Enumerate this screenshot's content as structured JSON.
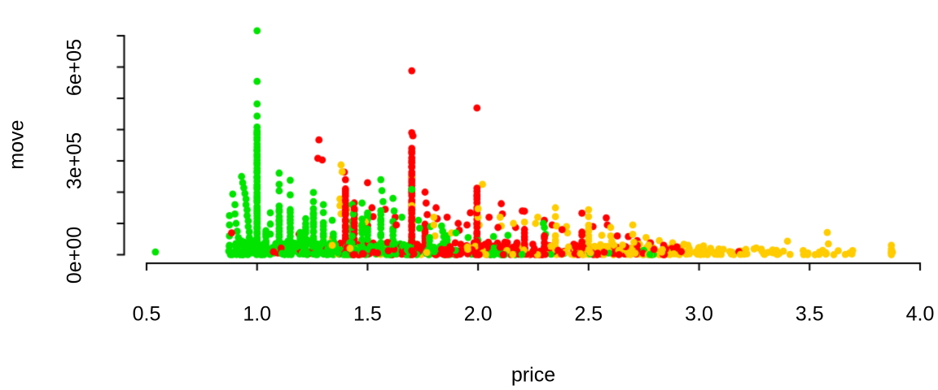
{
  "chart_data": {
    "type": "scatter",
    "title": "",
    "xlabel": "price",
    "ylabel": "move",
    "xlim": [
      0.5,
      4.0
    ],
    "ylim": [
      0,
      700000
    ],
    "grid": false,
    "legend": "none",
    "background": "#FFFFFF",
    "axis_color": "#000000",
    "x_ticks": [
      {
        "v": 0.5,
        "label": "0.5"
      },
      {
        "v": 1.0,
        "label": "1.0"
      },
      {
        "v": 1.5,
        "label": "1.5"
      },
      {
        "v": 2.0,
        "label": "2.0"
      },
      {
        "v": 2.5,
        "label": "2.5"
      },
      {
        "v": 3.0,
        "label": "3.0"
      },
      {
        "v": 3.5,
        "label": "3.5"
      },
      {
        "v": 4.0,
        "label": "4.0"
      }
    ],
    "y_ticks": [
      {
        "v": 0,
        "label": "0e+00"
      },
      {
        "v": 100000,
        "label": ""
      },
      {
        "v": 200000,
        "label": ""
      },
      {
        "v": 300000,
        "label": "3e+05"
      },
      {
        "v": 400000,
        "label": ""
      },
      {
        "v": 500000,
        "label": ""
      },
      {
        "v": 600000,
        "label": "6e+05"
      },
      {
        "v": 700000,
        "label": ""
      }
    ],
    "series": [
      {
        "name": "green",
        "color": "#00E400",
        "points": [
          [
            0.54,
            9000
          ],
          [
            0.875,
            30000
          ],
          [
            0.875,
            60000
          ],
          [
            0.875,
            95000
          ],
          [
            0.875,
            125000
          ],
          [
            0.89,
            194000
          ],
          [
            0.9,
            160000
          ],
          [
            0.9,
            130000
          ],
          [
            0.905,
            100000
          ],
          [
            0.91,
            75000
          ],
          [
            0.915,
            55000
          ],
          [
            0.93,
            250000
          ],
          [
            0.935,
            230000
          ],
          [
            0.94,
            214000
          ],
          [
            0.945,
            196000
          ],
          [
            0.95,
            178000
          ],
          [
            0.95,
            160000
          ],
          [
            0.955,
            143000
          ],
          [
            0.955,
            125000
          ],
          [
            0.96,
            108000
          ],
          [
            0.96,
            90000
          ],
          [
            0.965,
            73000
          ],
          [
            0.965,
            55000
          ],
          [
            0.97,
            38000
          ],
          [
            1.0,
            716000
          ],
          [
            1.0,
            554000
          ],
          [
            1.0,
            482000
          ],
          [
            1.0,
            443000
          ],
          [
            1.06,
            134000
          ],
          [
            1.06,
            98000
          ],
          [
            1.06,
            66000
          ],
          [
            1.1,
            261000
          ],
          [
            1.1,
            225000
          ],
          [
            1.1,
            204000
          ],
          [
            1.15,
            238000
          ],
          [
            1.15,
            191000
          ],
          [
            1.255,
            199000
          ],
          [
            1.255,
            170000
          ],
          [
            1.3,
            160000
          ],
          [
            1.3,
            135000
          ],
          [
            1.34,
            110000
          ],
          [
            1.43,
            160000
          ],
          [
            1.435,
            130000
          ],
          [
            1.475,
            165000
          ],
          [
            1.56,
            240000
          ],
          [
            1.565,
            205000
          ],
          [
            1.57,
            170000
          ],
          [
            1.615,
            180000
          ],
          [
            1.62,
            140000
          ],
          [
            1.655,
            120000
          ],
          [
            1.7,
            209000
          ],
          [
            1.73,
            110000
          ],
          [
            1.735,
            85000
          ],
          [
            1.785,
            90000
          ],
          [
            1.835,
            92000
          ],
          [
            1.84,
            75000
          ],
          [
            1.845,
            58000
          ],
          [
            1.9,
            70000
          ],
          [
            1.955,
            55000
          ],
          [
            2.0,
            46000
          ],
          [
            2.07,
            58000
          ],
          [
            2.135,
            62000
          ],
          [
            2.295,
            100000
          ],
          [
            2.3,
            87000
          ],
          [
            2.305,
            65000
          ],
          [
            2.49,
            15000
          ],
          [
            2.69,
            12000
          ],
          [
            2.75,
            14000
          ]
        ],
        "columns": [
          {
            "x": 1.0,
            "top": 412000,
            "count": 48
          },
          {
            "x": 1.04,
            "top": 85000,
            "count": 10
          },
          {
            "x": 1.1,
            "top": 160000,
            "count": 16
          },
          {
            "x": 1.15,
            "top": 150000,
            "count": 14
          },
          {
            "x": 1.195,
            "top": 80000,
            "count": 8
          },
          {
            "x": 1.22,
            "top": 120000,
            "count": 10
          },
          {
            "x": 1.255,
            "top": 150000,
            "count": 16
          },
          {
            "x": 1.3,
            "top": 110000,
            "count": 10
          },
          {
            "x": 1.345,
            "top": 70000,
            "count": 8
          },
          {
            "x": 1.43,
            "top": 110000,
            "count": 10
          },
          {
            "x": 1.475,
            "top": 120000,
            "count": 10
          },
          {
            "x": 1.5,
            "top": 140000,
            "count": 12
          },
          {
            "x": 1.56,
            "top": 150000,
            "count": 12
          },
          {
            "x": 1.615,
            "top": 110000,
            "count": 8
          },
          {
            "x": 1.7,
            "top": 60000,
            "count": 6
          },
          {
            "x": 1.78,
            "top": 60000,
            "count": 6
          },
          {
            "x": 1.86,
            "top": 65000,
            "count": 6
          }
        ],
        "bands": [
          {
            "x": [
              0.87,
              1.35
            ],
            "top": 45000,
            "count": 150
          },
          {
            "x": [
              1.35,
              1.85
            ],
            "top": 38000,
            "count": 115
          },
          {
            "x": [
              1.85,
              2.2
            ],
            "top": 26000,
            "count": 45
          },
          {
            "x": [
              2.2,
              2.8
            ],
            "top": 14000,
            "count": 12
          }
        ]
      },
      {
        "name": "red",
        "color": "#FF0000",
        "points": [
          [
            0.885,
            70000
          ],
          [
            1.19,
            66000
          ],
          [
            1.28,
            367000
          ],
          [
            1.275,
            308000
          ],
          [
            1.295,
            303000
          ],
          [
            1.395,
            264000
          ],
          [
            1.4,
            240000
          ],
          [
            1.5,
            230000
          ],
          [
            1.5,
            92000
          ],
          [
            1.52,
            150000
          ],
          [
            1.525,
            122000
          ],
          [
            1.58,
            145000
          ],
          [
            1.625,
            120000
          ],
          [
            1.63,
            95000
          ],
          [
            1.7,
            588000
          ],
          [
            1.7,
            390000
          ],
          [
            1.705,
            380000
          ],
          [
            1.76,
            200000
          ],
          [
            1.765,
            165000
          ],
          [
            1.77,
            128000
          ],
          [
            1.81,
            150000
          ],
          [
            1.815,
            115000
          ],
          [
            1.86,
            120000
          ],
          [
            1.91,
            100000
          ],
          [
            1.915,
            78000
          ],
          [
            1.95,
            95000
          ],
          [
            1.965,
            134000
          ],
          [
            1.995,
            469000
          ],
          [
            2.05,
            120000
          ],
          [
            2.09,
            87000
          ],
          [
            2.105,
            163000
          ],
          [
            2.11,
            130000
          ],
          [
            2.17,
            87000
          ],
          [
            2.2,
            140000
          ],
          [
            2.21,
            139000
          ],
          [
            2.3,
            110000
          ],
          [
            2.335,
            95000
          ],
          [
            2.38,
            80000
          ],
          [
            2.47,
            133000
          ],
          [
            2.52,
            90000
          ],
          [
            2.58,
            118000
          ],
          [
            2.585,
            95000
          ],
          [
            2.63,
            60000
          ],
          [
            2.68,
            58000
          ],
          [
            2.72,
            45000
          ],
          [
            2.78,
            38000
          ],
          [
            2.84,
            30000
          ],
          [
            2.9,
            25000
          ],
          [
            3.18,
            10000
          ]
        ],
        "columns": [
          {
            "x": 1.4,
            "top": 220000,
            "count": 22
          },
          {
            "x": 1.44,
            "top": 170000,
            "count": 14
          },
          {
            "x": 1.7,
            "top": 345000,
            "count": 38
          },
          {
            "x": 1.76,
            "top": 100000,
            "count": 10
          },
          {
            "x": 1.995,
            "top": 220000,
            "count": 22
          },
          {
            "x": 2.21,
            "top": 90000,
            "count": 8
          },
          {
            "x": 2.3,
            "top": 70000,
            "count": 6
          },
          {
            "x": 2.47,
            "top": 80000,
            "count": 6
          }
        ],
        "bands": [
          {
            "x": [
              1.05,
              1.35
            ],
            "top": 22000,
            "count": 12
          },
          {
            "x": [
              1.35,
              1.78
            ],
            "top": 40000,
            "count": 60
          },
          {
            "x": [
              1.78,
              2.2
            ],
            "top": 40000,
            "count": 80
          },
          {
            "x": [
              2.2,
              2.76
            ],
            "top": 34000,
            "count": 72
          },
          {
            "x": [
              2.76,
              2.96
            ],
            "top": 20000,
            "count": 12
          }
        ]
      },
      {
        "name": "gold",
        "color": "#FFCC00",
        "points": [
          [
            1.34,
            53000
          ],
          [
            1.34,
            30000
          ],
          [
            1.38,
            287000
          ],
          [
            1.385,
            265000
          ],
          [
            1.375,
            178000
          ],
          [
            1.375,
            157000
          ],
          [
            1.38,
            131000
          ],
          [
            1.4,
            165000
          ],
          [
            1.405,
            144000
          ],
          [
            1.49,
            105000
          ],
          [
            1.7,
            250000
          ],
          [
            1.7,
            157000
          ],
          [
            1.705,
            108000
          ],
          [
            1.8,
            120000
          ],
          [
            1.8,
            95000
          ],
          [
            1.805,
            60000
          ],
          [
            1.88,
            70000
          ],
          [
            2.0,
            147000
          ],
          [
            2.0,
            120000
          ],
          [
            2.005,
            95000
          ],
          [
            2.02,
            225000
          ],
          [
            2.1,
            120000
          ],
          [
            2.105,
            92000
          ],
          [
            2.16,
            100000
          ],
          [
            2.21,
            104000
          ],
          [
            2.26,
            100000
          ],
          [
            2.27,
            120000
          ],
          [
            2.35,
            150000
          ],
          [
            2.35,
            122000
          ],
          [
            2.355,
            92000
          ],
          [
            2.4,
            90000
          ],
          [
            2.405,
            70000
          ],
          [
            2.5,
            144000
          ],
          [
            2.5,
            122000
          ],
          [
            2.56,
            62000
          ],
          [
            2.6,
            87000
          ],
          [
            2.6,
            60000
          ],
          [
            2.605,
            43000
          ],
          [
            2.7,
            95000
          ],
          [
            2.7,
            65000
          ],
          [
            2.705,
            40000
          ],
          [
            2.76,
            55000
          ],
          [
            2.82,
            45000
          ],
          [
            2.88,
            38000
          ],
          [
            2.95,
            30000
          ],
          [
            3.02,
            28000
          ],
          [
            3.4,
            43000
          ],
          [
            3.58,
            71000
          ],
          [
            3.585,
            35000
          ],
          [
            3.87,
            30000
          ],
          [
            3.87,
            18000
          ],
          [
            3.875,
            8000
          ]
        ],
        "columns": [
          {
            "x": 2.35,
            "top": 70000,
            "count": 6
          },
          {
            "x": 2.5,
            "top": 100000,
            "count": 10
          },
          {
            "x": 3.87,
            "top": 12000,
            "count": 3
          }
        ],
        "bands": [
          {
            "x": [
              1.35,
              1.95
            ],
            "top": 28000,
            "count": 16
          },
          {
            "x": [
              1.95,
              2.45
            ],
            "top": 30000,
            "count": 34
          },
          {
            "x": [
              2.45,
              2.96
            ],
            "top": 34000,
            "count": 85
          },
          {
            "x": [
              2.96,
              3.3
            ],
            "top": 24000,
            "count": 48
          },
          {
            "x": [
              3.3,
              3.7
            ],
            "top": 16000,
            "count": 26
          }
        ]
      }
    ]
  }
}
